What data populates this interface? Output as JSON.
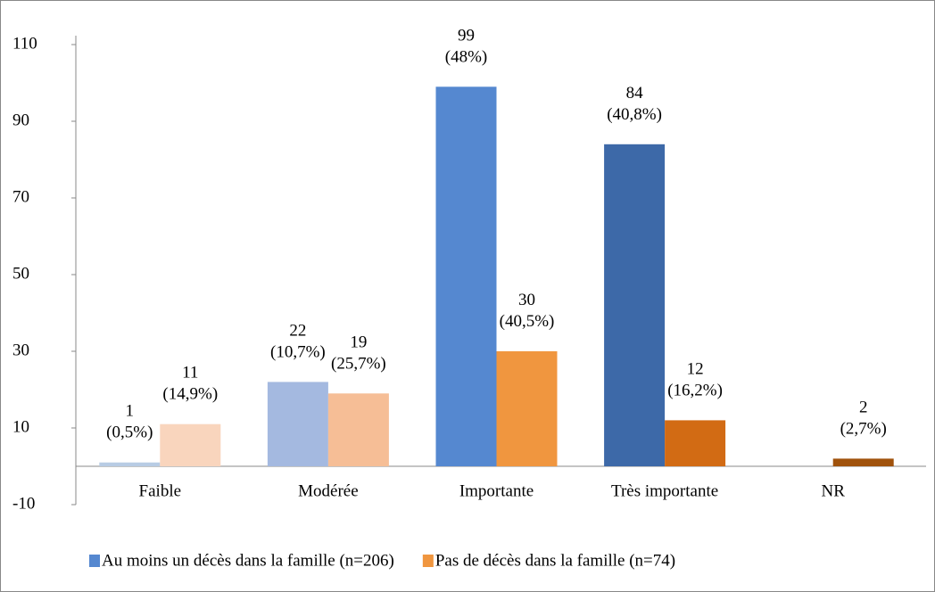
{
  "chart_data": {
    "type": "bar",
    "categories": [
      "Faible",
      "Modérée",
      "Importante",
      "Très importante",
      "NR"
    ],
    "series": [
      {
        "name": "Au moins un décès dans la famille (n=206)",
        "color": "#5588d0",
        "colors": [
          "#b8cce4",
          "#a4b9e0",
          "#5588d0",
          "#3d69a8",
          "#3d69a8"
        ],
        "values": [
          1,
          22,
          99,
          84,
          null
        ],
        "value_labels": [
          "1|(0,5%)",
          "22|(10,7%)",
          "99|(48%)",
          "84|(40,8%)",
          null
        ]
      },
      {
        "name": "Pas de décès dans la famille (n=74)",
        "color": "#f0963f",
        "colors": [
          "#f9d5bd",
          "#f6be96",
          "#f0963f",
          "#d26b14",
          "#a0520c"
        ],
        "values": [
          11,
          19,
          30,
          12,
          2
        ],
        "value_labels": [
          "11|(14,9%)",
          "19|(25,7%)",
          "30|(40,5%)",
          "12|(16,2%)",
          "2|(2,7%)"
        ]
      }
    ],
    "ylim": [
      -10,
      110
    ],
    "yticks": [
      -10,
      10,
      30,
      50,
      70,
      90,
      110
    ],
    "grid": false
  }
}
